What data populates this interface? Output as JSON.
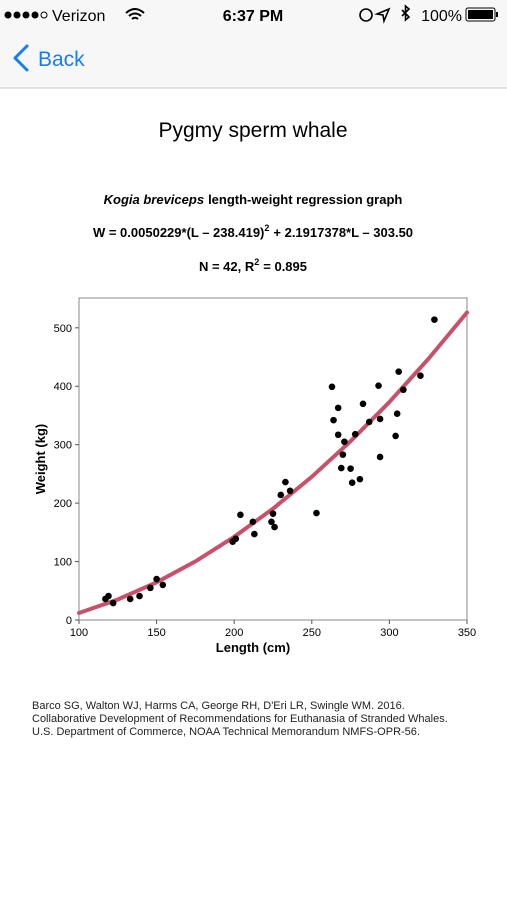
{
  "status_bar": {
    "carrier": "Verizon",
    "time": "6:37 PM",
    "battery": "100%"
  },
  "nav": {
    "back": "Back"
  },
  "page_title": "Pygmy sperm whale",
  "chart_data": {
    "type": "scatter",
    "title": [
      "Kogia breviceps",
      "length-weight regression graph"
    ],
    "equation": [
      "W = 0.0050229*(L – 238.419)",
      "2",
      "+ 2.1917378*L – 303.50"
    ],
    "stats": [
      "N = 42, R",
      "2",
      "= 0.895"
    ],
    "x_label": "Length (cm)",
    "y_label": "Weight (kg)",
    "xlim": [
      100,
      350
    ],
    "ylim": [
      0,
      551
    ],
    "xticks": [
      100,
      150,
      200,
      250,
      300,
      350
    ],
    "yticks": [
      0,
      100,
      200,
      300,
      400,
      500
    ],
    "series": [
      {
        "type": "scatter",
        "color": "#000000",
        "x": [
          117,
          119,
          122,
          133,
          139,
          146,
          150,
          154,
          199,
          201,
          204,
          212,
          213,
          224,
          225,
          226,
          230,
          233,
          236,
          253,
          263,
          264,
          267,
          267,
          269,
          270,
          271,
          275,
          276,
          278,
          281,
          283,
          287,
          293,
          294,
          294,
          304,
          305,
          306,
          309,
          320,
          329
        ],
        "values": [
          36,
          41,
          29,
          36,
          41,
          55,
          70,
          60,
          134,
          139,
          180,
          168,
          147,
          168,
          182,
          159,
          214,
          236,
          221,
          183,
          399,
          342,
          363,
          317,
          260,
          283,
          305,
          259,
          235,
          318,
          241,
          370,
          339,
          401,
          344,
          279,
          315,
          353,
          425,
          394,
          418,
          514
        ]
      },
      {
        "type": "line",
        "color": "#c8506a",
        "x": [
          100,
          125,
          150,
          175,
          200,
          225,
          250,
          275,
          300,
          325,
          350
        ],
        "values": [
          11.9,
          35.1,
          64.5,
          100.3,
          142.3,
          190.5,
          245.1,
          306.0,
          373.1,
          446.5,
          526.2
        ]
      }
    ]
  },
  "citation": [
    "Barco SG, Walton WJ, Harms CA, George RH, D'Eri LR, Swingle WM. 2016.",
    "Collaborative Development of Recommendations for Euthanasia of Stranded Whales.",
    "U.S. Department of Commerce, NOAA Technical Memorandum NMFS-OPR-56."
  ]
}
